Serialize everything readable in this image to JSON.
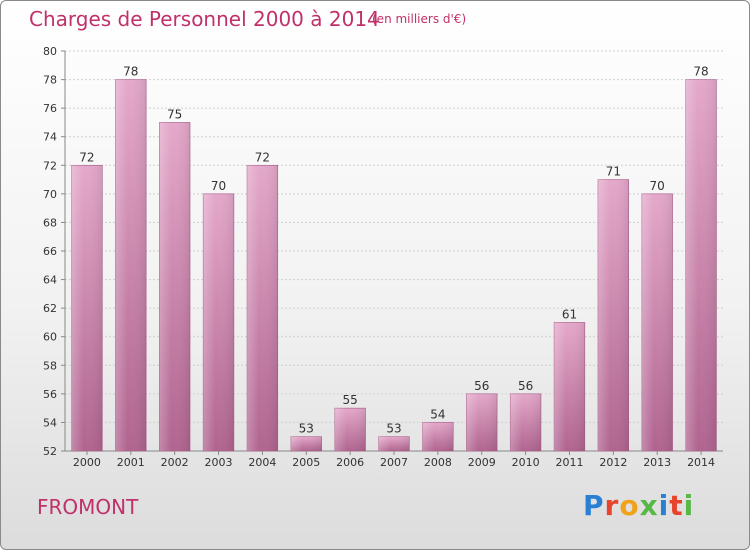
{
  "header": {
    "title": "Charges de Personnel 2000 à 2014",
    "subtitle": "(en milliers d'€)"
  },
  "footer": {
    "commune": "FROMONT",
    "logo_text": "Proxiti",
    "logo_colors": [
      "#2a7fd4",
      "#e8432b",
      "#f0a21b",
      "#57b846",
      "#2a7fd4",
      "#e8432b",
      "#57b846"
    ]
  },
  "colors": {
    "bar_top": "#e4a8ca",
    "bar_bottom": "#b0648f",
    "grid": "#cfcfcf",
    "axis_text": "#333333",
    "accent": "#c0306a"
  },
  "chart_data": {
    "type": "bar",
    "categories": [
      "2000",
      "2001",
      "2002",
      "2003",
      "2004",
      "2005",
      "2006",
      "2007",
      "2008",
      "2009",
      "2010",
      "2011",
      "2012",
      "2013",
      "2014"
    ],
    "values": [
      72,
      78,
      75,
      70,
      72,
      53,
      55,
      53,
      54,
      56,
      56,
      61,
      71,
      70,
      78
    ],
    "ylim": [
      52,
      80
    ],
    "yticks": [
      52,
      54,
      56,
      58,
      60,
      62,
      64,
      66,
      68,
      70,
      72,
      74,
      76,
      78,
      80
    ],
    "grid": true,
    "data_labels": true
  }
}
